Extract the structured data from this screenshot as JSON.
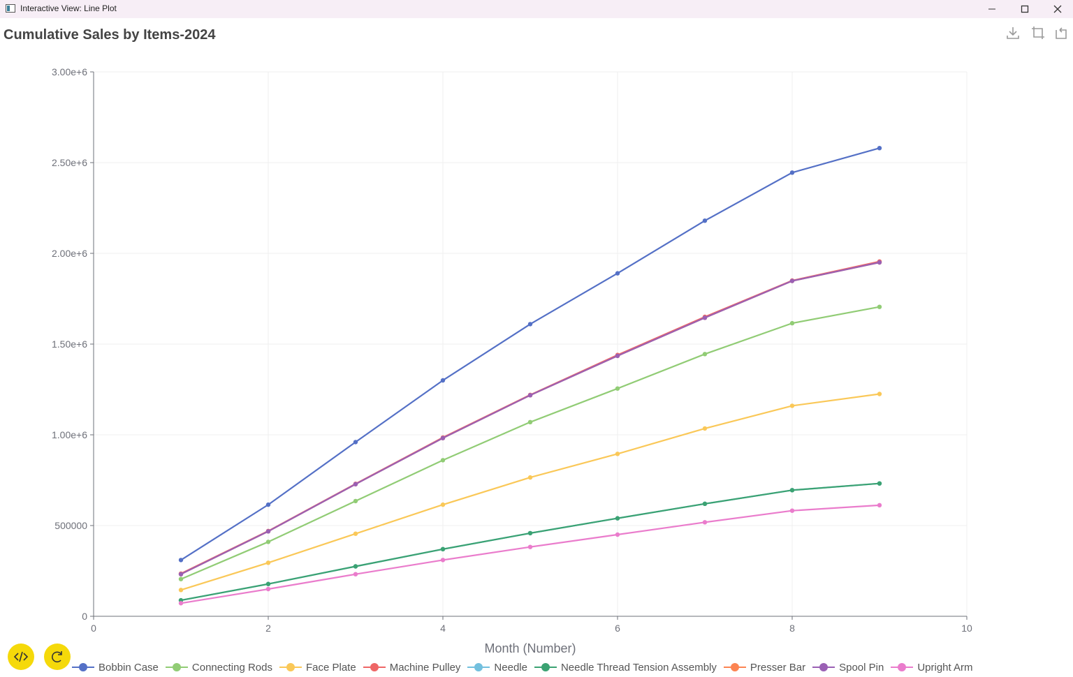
{
  "window": {
    "title": "Interactive View: Line Plot"
  },
  "toolbar": {
    "icons": [
      "download-icon",
      "crop-icon",
      "reset-icon"
    ]
  },
  "chart_data": {
    "type": "line",
    "title": "Cumulative Sales by Items-2024",
    "xlabel": "Month (Number)",
    "ylabel": "",
    "xlim": [
      0,
      10
    ],
    "ylim": [
      0,
      3000000
    ],
    "xticks": [
      0,
      2,
      4,
      6,
      8,
      10
    ],
    "yticks": [
      0,
      500000,
      1000000,
      1500000,
      2000000,
      2500000,
      3000000
    ],
    "yticklabels": [
      "0",
      "500000",
      "1.00e+6",
      "1.50e+6",
      "2.00e+6",
      "2.50e+6",
      "3.00e+6"
    ],
    "x": [
      1,
      2,
      3,
      4,
      5,
      6,
      7,
      8,
      9
    ],
    "grid": true,
    "legend_position": "bottom",
    "series": [
      {
        "name": "Bobbin Case",
        "color": "#5470c6",
        "values": [
          310000,
          615000,
          960000,
          1300000,
          1610000,
          1890000,
          2180000,
          2445000,
          2580000
        ]
      },
      {
        "name": "Connecting Rods",
        "color": "#91cc75",
        "values": [
          205000,
          410000,
          635000,
          860000,
          1070000,
          1255000,
          1445000,
          1615000,
          1705000
        ]
      },
      {
        "name": "Face Plate",
        "color": "#fac858",
        "values": [
          145000,
          295000,
          455000,
          615000,
          765000,
          895000,
          1035000,
          1160000,
          1225000
        ]
      },
      {
        "name": "Machine Pulley",
        "color": "#ee6666",
        "values": [
          235000,
          470000,
          730000,
          985000,
          1220000,
          1440000,
          1650000,
          1850000,
          1955000
        ]
      },
      {
        "name": "Needle",
        "color": "#73c0de",
        "values": [
          88000,
          178000,
          275000,
          370000,
          458000,
          540000,
          620000,
          695000,
          732000
        ]
      },
      {
        "name": "Needle Thread Tension Assembly",
        "color": "#3ba272",
        "values": [
          88000,
          178000,
          275000,
          370000,
          458000,
          540000,
          620000,
          695000,
          732000
        ]
      },
      {
        "name": "Presser Bar",
        "color": "#fc8452",
        "values": [
          232000,
          468000,
          728000,
          982000,
          1218000,
          1435000,
          1645000,
          1848000,
          1950000
        ]
      },
      {
        "name": "Spool Pin",
        "color": "#9a60b4",
        "values": [
          232000,
          468000,
          728000,
          982000,
          1218000,
          1435000,
          1645000,
          1848000,
          1950000
        ]
      },
      {
        "name": "Upright Arm",
        "color": "#ea7ccc",
        "values": [
          72000,
          150000,
          232000,
          310000,
          382000,
          450000,
          518000,
          582000,
          612000
        ]
      }
    ]
  },
  "buttons": {
    "code_icon": "code-icon",
    "refresh_icon": "refresh-icon"
  }
}
